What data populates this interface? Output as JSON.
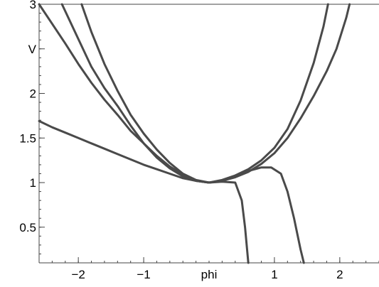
{
  "chart_data": {
    "type": "line",
    "title": "",
    "xlabel": "phi",
    "ylabel": "V",
    "xlim": [
      -2.6,
      2.6
    ],
    "ylim": [
      0.1,
      3.0
    ],
    "grid": false,
    "legend": "none",
    "line_color": "#4a4a4a",
    "x_ticks": [
      {
        "value": -2,
        "label": "−2"
      },
      {
        "value": -1,
        "label": "−1"
      },
      {
        "value": 1,
        "label": "1"
      },
      {
        "value": 2,
        "label": "2"
      }
    ],
    "y_ticks": [
      {
        "value": 0.5,
        "label": "0.5"
      },
      {
        "value": 1,
        "label": "1"
      },
      {
        "value": 1.5,
        "label": "1.5"
      },
      {
        "value": 2,
        "label": "2"
      },
      {
        "value": 3,
        "label": "3"
      }
    ],
    "series": [
      {
        "x": [
          -2.6,
          -2.4,
          -2.2,
          -2.0,
          -1.8,
          -1.6,
          -1.4,
          -1.2,
          -1.0,
          -0.8,
          -0.6,
          -0.4,
          -0.2,
          0.0,
          0.2,
          0.4,
          0.5,
          0.55,
          0.6
        ],
        "y": [
          1.69,
          1.62,
          1.56,
          1.5,
          1.44,
          1.38,
          1.32,
          1.26,
          1.2,
          1.15,
          1.1,
          1.05,
          1.02,
          1.0,
          1.01,
          1.0,
          0.8,
          0.5,
          0.1
        ]
      },
      {
        "x": [
          -2.25,
          -2.0,
          -1.8,
          -1.6,
          -1.4,
          -1.2,
          -1.0,
          -0.8,
          -0.6,
          -0.4,
          -0.2,
          0.0,
          0.2,
          0.4,
          0.6,
          0.8,
          0.95,
          1.1,
          1.2,
          1.3,
          1.4,
          1.45
        ],
        "y": [
          3.0,
          2.61,
          2.3,
          2.06,
          1.86,
          1.64,
          1.44,
          1.28,
          1.16,
          1.07,
          1.02,
          1.0,
          1.02,
          1.07,
          1.13,
          1.17,
          1.17,
          1.1,
          0.9,
          0.6,
          0.25,
          0.1
        ]
      },
      {
        "x": [
          -2.6,
          -2.4,
          -2.2,
          -2.0,
          -1.8,
          -1.6,
          -1.4,
          -1.2,
          -1.0,
          -0.8,
          -0.6,
          -0.4,
          -0.2,
          0.0,
          0.2,
          0.4,
          0.6,
          0.8,
          1.0,
          1.2,
          1.4,
          1.6,
          1.8,
          1.95,
          2.1,
          2.15
        ],
        "y": [
          3.0,
          2.78,
          2.56,
          2.33,
          2.12,
          1.93,
          1.76,
          1.58,
          1.44,
          1.3,
          1.18,
          1.09,
          1.02,
          1.0,
          1.02,
          1.06,
          1.12,
          1.21,
          1.33,
          1.5,
          1.72,
          1.97,
          2.25,
          2.5,
          2.85,
          3.0
        ]
      },
      {
        "x": [
          -1.95,
          -1.8,
          -1.6,
          -1.4,
          -1.2,
          -1.0,
          -0.8,
          -0.6,
          -0.4,
          -0.2,
          0.0,
          0.2,
          0.4,
          0.6,
          0.8,
          1.0,
          1.2,
          1.4,
          1.6,
          1.75,
          1.82
        ],
        "y": [
          3.0,
          2.69,
          2.33,
          2.03,
          1.76,
          1.55,
          1.37,
          1.22,
          1.1,
          1.03,
          1.0,
          1.03,
          1.08,
          1.15,
          1.25,
          1.39,
          1.6,
          1.92,
          2.34,
          2.75,
          3.0
        ]
      }
    ]
  }
}
